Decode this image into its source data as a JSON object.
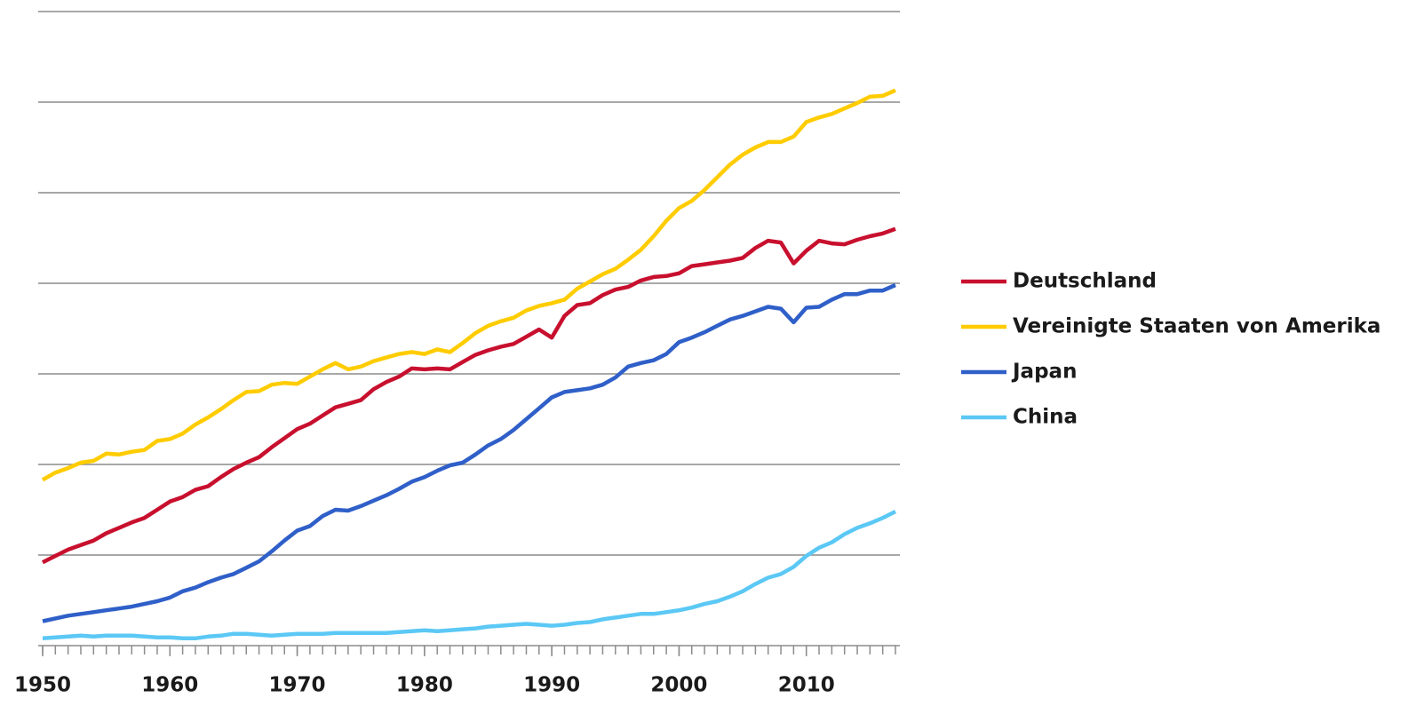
{
  "chart_data": {
    "type": "line",
    "x": [
      1950,
      1951,
      1952,
      1953,
      1954,
      1955,
      1956,
      1957,
      1958,
      1959,
      1960,
      1961,
      1962,
      1963,
      1964,
      1965,
      1966,
      1967,
      1968,
      1969,
      1970,
      1971,
      1972,
      1973,
      1974,
      1975,
      1976,
      1977,
      1978,
      1979,
      1980,
      1981,
      1982,
      1983,
      1984,
      1985,
      1986,
      1987,
      1988,
      1989,
      1990,
      1991,
      1992,
      1993,
      1994,
      1995,
      1996,
      1997,
      1998,
      1999,
      2000,
      2001,
      2002,
      2003,
      2004,
      2005,
      2006,
      2007,
      2008,
      2009,
      2010,
      2011,
      2012,
      2013,
      2014,
      2015,
      2016,
      2017
    ],
    "series": [
      {
        "name": "Deutschland",
        "color": "#c8102e",
        "values": [
          0.92,
          0.99,
          1.06,
          1.11,
          1.16,
          1.24,
          1.3,
          1.36,
          1.41,
          1.5,
          1.59,
          1.64,
          1.72,
          1.76,
          1.86,
          1.95,
          2.02,
          2.08,
          2.19,
          2.29,
          2.39,
          2.45,
          2.54,
          2.63,
          2.67,
          2.71,
          2.83,
          2.91,
          2.97,
          3.06,
          3.05,
          3.06,
          3.05,
          3.13,
          3.21,
          3.26,
          3.3,
          3.33,
          3.41,
          3.49,
          3.4,
          3.64,
          3.76,
          3.78,
          3.87,
          3.93,
          3.96,
          4.03,
          4.07,
          4.08,
          4.11,
          4.19,
          4.21,
          4.23,
          4.25,
          4.28,
          4.39,
          4.47,
          4.45,
          4.22,
          4.36,
          4.47,
          4.44,
          4.43,
          4.48,
          4.52,
          4.55,
          4.6
        ]
      },
      {
        "name": "Vereinigte Staaten von Amerika",
        "color": "#ffcc00",
        "values": [
          1.83,
          1.91,
          1.96,
          2.02,
          2.04,
          2.12,
          2.11,
          2.14,
          2.16,
          2.26,
          2.28,
          2.34,
          2.44,
          2.52,
          2.61,
          2.71,
          2.8,
          2.81,
          2.88,
          2.9,
          2.89,
          2.97,
          3.05,
          3.12,
          3.05,
          3.08,
          3.14,
          3.18,
          3.22,
          3.24,
          3.22,
          3.27,
          3.24,
          3.34,
          3.45,
          3.53,
          3.58,
          3.62,
          3.7,
          3.75,
          3.78,
          3.82,
          3.94,
          4.02,
          4.1,
          4.16,
          4.26,
          4.37,
          4.52,
          4.69,
          4.83,
          4.91,
          5.03,
          5.17,
          5.31,
          5.42,
          5.5,
          5.56,
          5.56,
          5.62,
          5.78,
          5.83,
          5.87,
          5.93,
          5.99,
          6.06,
          6.07,
          6.13
        ]
      },
      {
        "name": "Japan",
        "color": "#2f5fc8",
        "values": [
          0.27,
          0.3,
          0.33,
          0.35,
          0.37,
          0.39,
          0.41,
          0.43,
          0.46,
          0.49,
          0.53,
          0.6,
          0.64,
          0.7,
          0.75,
          0.79,
          0.86,
          0.93,
          1.04,
          1.16,
          1.27,
          1.32,
          1.43,
          1.5,
          1.49,
          1.54,
          1.6,
          1.66,
          1.73,
          1.81,
          1.86,
          1.93,
          1.99,
          2.02,
          2.11,
          2.21,
          2.28,
          2.38,
          2.5,
          2.62,
          2.74,
          2.8,
          2.82,
          2.84,
          2.88,
          2.96,
          3.08,
          3.12,
          3.15,
          3.22,
          3.35,
          3.4,
          3.46,
          3.53,
          3.6,
          3.64,
          3.69,
          3.74,
          3.72,
          3.57,
          3.73,
          3.74,
          3.82,
          3.88,
          3.88,
          3.92,
          3.92,
          3.98
        ]
      },
      {
        "name": "China",
        "color": "#5bc8f5",
        "values": [
          0.08,
          0.09,
          0.1,
          0.11,
          0.1,
          0.11,
          0.11,
          0.11,
          0.1,
          0.09,
          0.09,
          0.08,
          0.08,
          0.1,
          0.11,
          0.13,
          0.13,
          0.12,
          0.11,
          0.12,
          0.13,
          0.13,
          0.13,
          0.14,
          0.14,
          0.14,
          0.14,
          0.14,
          0.15,
          0.16,
          0.17,
          0.16,
          0.17,
          0.18,
          0.19,
          0.21,
          0.22,
          0.23,
          0.24,
          0.23,
          0.22,
          0.23,
          0.25,
          0.26,
          0.29,
          0.31,
          0.33,
          0.35,
          0.35,
          0.37,
          0.39,
          0.42,
          0.46,
          0.49,
          0.54,
          0.6,
          0.68,
          0.75,
          0.79,
          0.87,
          0.99,
          1.08,
          1.14,
          1.23,
          1.3,
          1.35,
          1.41,
          1.48
        ]
      }
    ],
    "xlim": [
      1950,
      2017
    ],
    "xticks": [
      1950,
      1960,
      1970,
      1980,
      1990,
      2000,
      2010
    ],
    "ylim": [
      0,
      7
    ],
    "yticks": [
      0,
      1,
      2,
      3,
      4,
      5,
      6,
      7
    ],
    "grid": true,
    "legend": "right"
  }
}
